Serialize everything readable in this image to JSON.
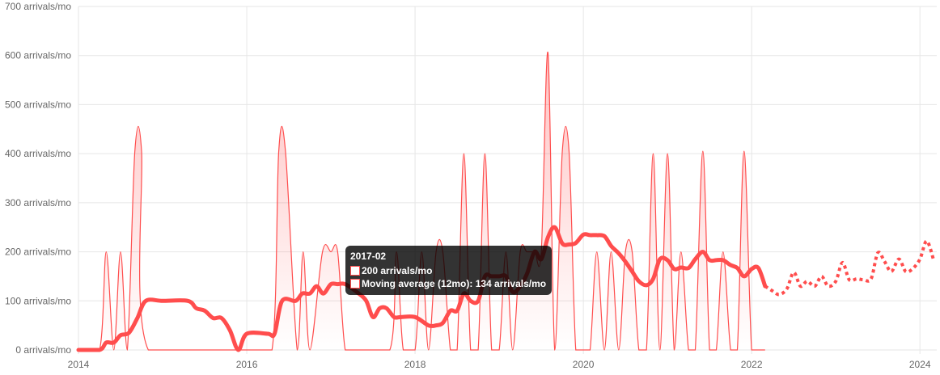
{
  "chart_data": {
    "type": "line",
    "x_min": 2014.0,
    "x_max": 2024.2,
    "ylim": [
      0,
      700
    ],
    "y_ticks": [
      0,
      100,
      200,
      300,
      400,
      500,
      600,
      700
    ],
    "y_tick_labels": [
      "0 arrivals/mo",
      "100 arrivals/mo",
      "200 arrivals/mo",
      "300 arrivals/mo",
      "400 arrivals/mo",
      "500 arrivals/mo",
      "600 arrivals/mo",
      "700 arrivals/mo"
    ],
    "x_ticks": [
      2014,
      2016,
      2018,
      2020,
      2022,
      2024
    ],
    "x_tick_labels": [
      "2014",
      "2016",
      "2018",
      "2020",
      "2022",
      "2024"
    ],
    "grid": true,
    "colors": {
      "line": "#ff4d4d",
      "fill": "#ffd6d6",
      "grid": "#e6e6e6"
    },
    "monthly": {
      "x": [
        2014.0,
        2014.25,
        2014.33,
        2014.42,
        2014.5,
        2014.58,
        2014.67,
        2014.75,
        2014.83,
        2015.9,
        2016.0,
        2016.3,
        2016.38,
        2016.46,
        2016.6,
        2016.67,
        2016.75,
        2016.9,
        2017.0,
        2017.08,
        2017.17,
        2017.3,
        2017.7,
        2017.78,
        2017.86,
        2018.0,
        2018.08,
        2018.16,
        2018.25,
        2018.33,
        2018.42,
        2018.5,
        2018.58,
        2018.66,
        2018.75,
        2018.83,
        2018.91,
        2019.0,
        2019.08,
        2019.16,
        2019.25,
        2019.33,
        2019.42,
        2019.5,
        2019.58,
        2019.66,
        2019.75,
        2019.83,
        2019.91,
        2020.0,
        2020.08,
        2020.16,
        2020.25,
        2020.33,
        2020.42,
        2020.5,
        2020.58,
        2020.66,
        2020.75,
        2020.83,
        2020.91,
        2021.0,
        2021.08,
        2021.16,
        2021.25,
        2021.33,
        2021.42,
        2021.5,
        2021.58,
        2021.66,
        2021.75,
        2021.83,
        2021.91,
        2022.0,
        2022.08,
        2022.16
      ],
      "values": [
        0,
        0,
        200,
        0,
        200,
        0,
        405,
        405,
        0,
        0,
        0,
        0,
        405,
        405,
        0,
        200,
        0,
        200,
        200,
        200,
        0,
        0,
        0,
        200,
        0,
        0,
        200,
        0,
        200,
        200,
        0,
        0,
        400,
        0,
        0,
        400,
        0,
        0,
        200,
        0,
        200,
        200,
        200,
        200,
        605,
        0,
        405,
        405,
        0,
        0,
        0,
        200,
        0,
        200,
        0,
        200,
        200,
        0,
        0,
        400,
        0,
        400,
        0,
        200,
        0,
        0,
        405,
        0,
        0,
        200,
        0,
        0,
        405,
        0,
        0,
        0
      ]
    },
    "moving_average": {
      "x": [
        2014.0,
        2014.25,
        2014.33,
        2014.42,
        2014.5,
        2014.6,
        2014.7,
        2014.8,
        2015.0,
        2015.3,
        2015.4,
        2015.5,
        2015.6,
        2015.7,
        2015.8,
        2015.9,
        2016.0,
        2016.25,
        2016.33,
        2016.42,
        2016.58,
        2016.66,
        2016.75,
        2016.83,
        2016.91,
        2017.0,
        2017.08,
        2017.17,
        2017.33,
        2017.42,
        2017.5,
        2017.58,
        2017.66,
        2017.75,
        2017.83,
        2018.0,
        2018.16,
        2018.25,
        2018.33,
        2018.42,
        2018.5,
        2018.58,
        2018.66,
        2018.75,
        2018.83,
        2018.91,
        2019.0,
        2019.08,
        2019.16,
        2019.25,
        2019.33,
        2019.42,
        2019.5,
        2019.58,
        2019.66,
        2019.75,
        2019.83,
        2019.91,
        2020.0,
        2020.08,
        2020.16,
        2020.25,
        2020.33,
        2020.42,
        2020.5,
        2020.58,
        2020.66,
        2020.75,
        2020.83,
        2020.91,
        2021.0,
        2021.08,
        2021.16,
        2021.25,
        2021.33,
        2021.42,
        2021.5,
        2021.58,
        2021.66,
        2021.75,
        2021.83,
        2021.91,
        2022.0,
        2022.08,
        2022.16
      ],
      "values": [
        0,
        0,
        15,
        15,
        30,
        35,
        65,
        100,
        100,
        100,
        85,
        80,
        65,
        65,
        40,
        0,
        33,
        33,
        33,
        100,
        100,
        115,
        115,
        130,
        115,
        134,
        134,
        134,
        115,
        100,
        67,
        85,
        85,
        67,
        67,
        67,
        50,
        50,
        55,
        80,
        80,
        115,
        100,
        100,
        150,
        150,
        150,
        150,
        118,
        130,
        155,
        200,
        185,
        230,
        250,
        217,
        215,
        218,
        235,
        234,
        234,
        232,
        212,
        197,
        180,
        160,
        140,
        132,
        145,
        185,
        183,
        165,
        168,
        167,
        185,
        200,
        183,
        183,
        183,
        173,
        167,
        150,
        165,
        167,
        130
      ]
    },
    "forecast": {
      "x": [
        2022.16,
        2022.25,
        2022.33,
        2022.42,
        2022.5,
        2022.58,
        2022.66,
        2022.75,
        2022.83,
        2022.91,
        2023.0,
        2023.08,
        2023.16,
        2023.25,
        2023.33,
        2023.42,
        2023.5,
        2023.58,
        2023.66,
        2023.75,
        2023.83,
        2023.91,
        2024.0,
        2024.08,
        2024.16
      ],
      "values": [
        130,
        120,
        113,
        125,
        158,
        130,
        140,
        130,
        150,
        130,
        140,
        178,
        143,
        145,
        143,
        145,
        198,
        180,
        160,
        185,
        160,
        165,
        185,
        222,
        185
      ]
    },
    "tooltip": {
      "title": "2017-02",
      "line1": "200 arrivals/mo",
      "line2": "Moving average (12mo): 134 arrivals/mo"
    }
  }
}
